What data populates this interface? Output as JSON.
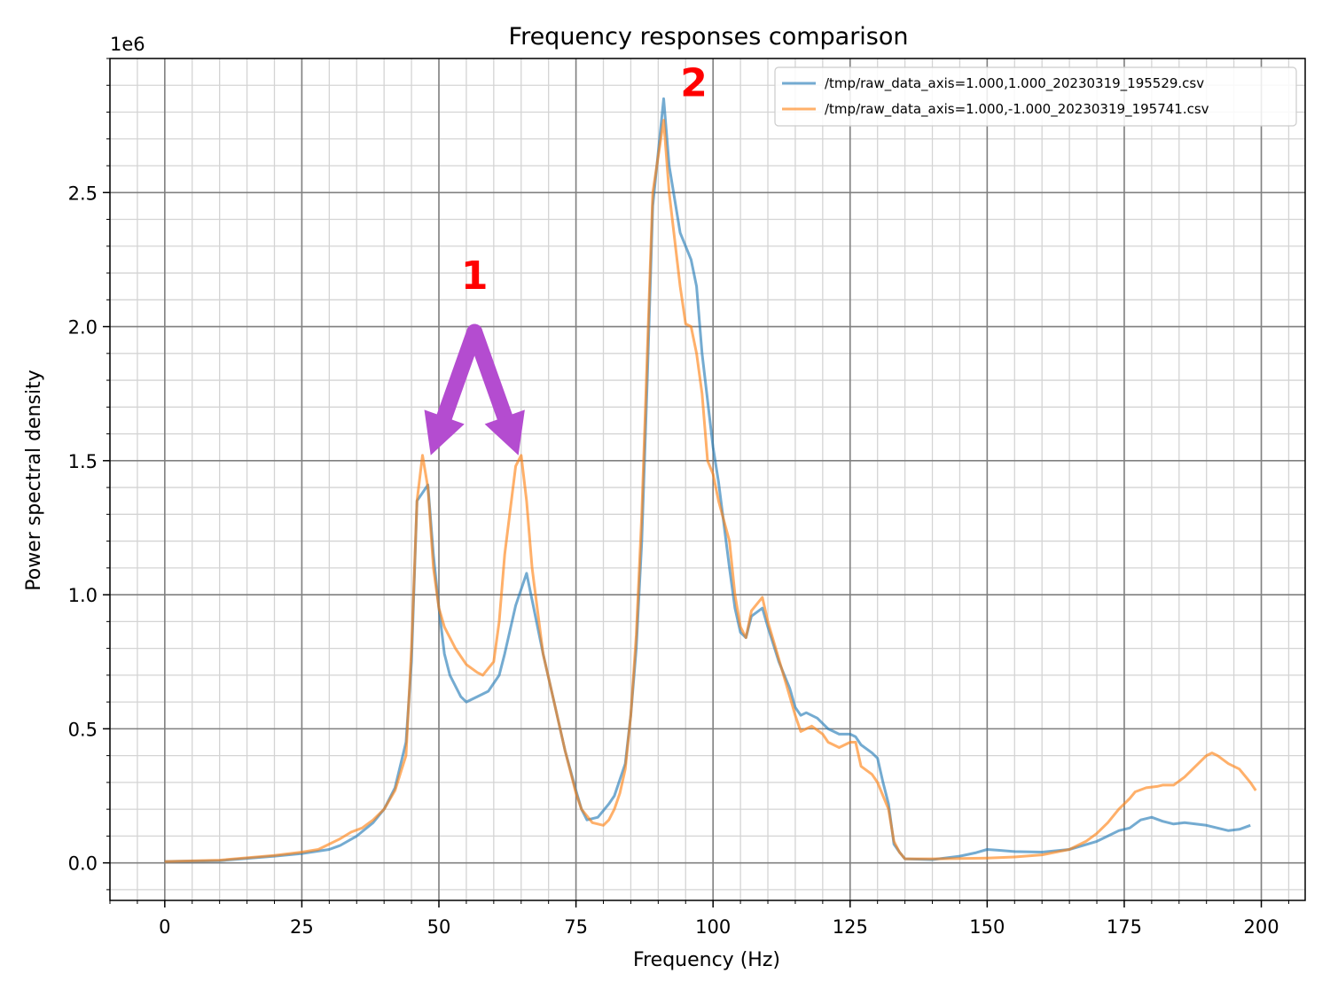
{
  "chart_data": {
    "type": "line",
    "title": "Frequency responses comparison",
    "xlabel": "Frequency (Hz)",
    "ylabel": "Power spectral density",
    "y_scale_label": "1e6",
    "xlim": [
      -10,
      208
    ],
    "ylim": [
      -0.14,
      3.0
    ],
    "x_ticks": [
      0,
      25,
      50,
      75,
      100,
      125,
      150,
      175,
      200
    ],
    "x_tick_labels": [
      "0",
      "25",
      "50",
      "75",
      "100",
      "125",
      "150",
      "175",
      "200"
    ],
    "y_ticks": [
      0.0,
      0.5,
      1.0,
      1.5,
      2.0,
      2.5
    ],
    "y_tick_labels": [
      "0.0",
      "0.5",
      "1.0",
      "1.5",
      "2.0",
      "2.5"
    ],
    "x_minor_step": 5,
    "y_minor_step": 0.1,
    "grid": true,
    "legend_position": "top-right",
    "series": [
      {
        "name": "/tmp/raw_data_axis=1.000,1.000_20230319_195529.csv",
        "color": "#1f77b4",
        "points": [
          [
            0,
            0.005
          ],
          [
            10,
            0.008
          ],
          [
            20,
            0.025
          ],
          [
            25,
            0.035
          ],
          [
            30,
            0.05
          ],
          [
            32,
            0.065
          ],
          [
            35,
            0.1
          ],
          [
            38,
            0.15
          ],
          [
            40,
            0.2
          ],
          [
            42,
            0.28
          ],
          [
            44,
            0.45
          ],
          [
            45,
            0.75
          ],
          [
            46,
            1.35
          ],
          [
            48,
            1.41
          ],
          [
            49,
            1.15
          ],
          [
            50,
            0.95
          ],
          [
            51,
            0.78
          ],
          [
            52,
            0.7
          ],
          [
            54,
            0.62
          ],
          [
            55,
            0.6
          ],
          [
            57,
            0.62
          ],
          [
            59,
            0.64
          ],
          [
            61,
            0.7
          ],
          [
            62,
            0.78
          ],
          [
            64,
            0.96
          ],
          [
            66,
            1.08
          ],
          [
            67,
            0.98
          ],
          [
            69,
            0.78
          ],
          [
            71,
            0.6
          ],
          [
            73,
            0.42
          ],
          [
            75,
            0.27
          ],
          [
            76,
            0.2
          ],
          [
            77,
            0.16
          ],
          [
            79,
            0.17
          ],
          [
            81,
            0.22
          ],
          [
            82,
            0.25
          ],
          [
            84,
            0.37
          ],
          [
            85,
            0.55
          ],
          [
            86,
            0.8
          ],
          [
            87,
            1.2
          ],
          [
            88,
            1.8
          ],
          [
            89,
            2.45
          ],
          [
            91,
            2.85
          ],
          [
            92,
            2.6
          ],
          [
            94,
            2.35
          ],
          [
            96,
            2.25
          ],
          [
            97,
            2.15
          ],
          [
            98,
            1.9
          ],
          [
            100,
            1.55
          ],
          [
            101,
            1.42
          ],
          [
            103,
            1.1
          ],
          [
            104,
            0.95
          ],
          [
            105,
            0.86
          ],
          [
            106,
            0.84
          ],
          [
            107,
            0.92
          ],
          [
            109,
            0.95
          ],
          [
            110,
            0.88
          ],
          [
            112,
            0.75
          ],
          [
            114,
            0.65
          ],
          [
            115,
            0.58
          ],
          [
            116,
            0.55
          ],
          [
            117,
            0.56
          ],
          [
            119,
            0.54
          ],
          [
            121,
            0.5
          ],
          [
            123,
            0.48
          ],
          [
            125,
            0.48
          ],
          [
            126,
            0.47
          ],
          [
            127,
            0.44
          ],
          [
            129,
            0.41
          ],
          [
            130,
            0.39
          ],
          [
            131,
            0.3
          ],
          [
            132,
            0.22
          ],
          [
            133,
            0.07
          ],
          [
            134,
            0.04
          ],
          [
            135,
            0.015
          ],
          [
            140,
            0.012
          ],
          [
            145,
            0.025
          ],
          [
            148,
            0.038
          ],
          [
            150,
            0.05
          ],
          [
            152,
            0.047
          ],
          [
            155,
            0.042
          ],
          [
            160,
            0.04
          ],
          [
            165,
            0.05
          ],
          [
            170,
            0.08
          ],
          [
            172,
            0.1
          ],
          [
            174,
            0.12
          ],
          [
            176,
            0.13
          ],
          [
            178,
            0.16
          ],
          [
            180,
            0.17
          ],
          [
            182,
            0.155
          ],
          [
            184,
            0.145
          ],
          [
            186,
            0.15
          ],
          [
            188,
            0.145
          ],
          [
            190,
            0.14
          ],
          [
            192,
            0.13
          ],
          [
            194,
            0.12
          ],
          [
            196,
            0.125
          ],
          [
            198,
            0.14
          ]
        ]
      },
      {
        "name": "/tmp/raw_data_axis=1.000,-1.000_20230319_195741.csv",
        "color": "#ff7f0e",
        "points": [
          [
            0,
            0.005
          ],
          [
            10,
            0.01
          ],
          [
            20,
            0.028
          ],
          [
            25,
            0.04
          ],
          [
            28,
            0.05
          ],
          [
            30,
            0.07
          ],
          [
            32,
            0.09
          ],
          [
            34,
            0.115
          ],
          [
            36,
            0.13
          ],
          [
            38,
            0.16
          ],
          [
            40,
            0.2
          ],
          [
            42,
            0.27
          ],
          [
            44,
            0.4
          ],
          [
            45,
            0.8
          ],
          [
            46,
            1.35
          ],
          [
            47,
            1.52
          ],
          [
            48,
            1.4
          ],
          [
            49,
            1.1
          ],
          [
            50,
            0.95
          ],
          [
            51,
            0.88
          ],
          [
            53,
            0.8
          ],
          [
            55,
            0.74
          ],
          [
            57,
            0.71
          ],
          [
            58,
            0.7
          ],
          [
            60,
            0.75
          ],
          [
            61,
            0.9
          ],
          [
            62,
            1.15
          ],
          [
            64,
            1.48
          ],
          [
            65,
            1.52
          ],
          [
            66,
            1.35
          ],
          [
            67,
            1.1
          ],
          [
            69,
            0.78
          ],
          [
            71,
            0.6
          ],
          [
            73,
            0.42
          ],
          [
            75,
            0.26
          ],
          [
            76,
            0.2
          ],
          [
            78,
            0.15
          ],
          [
            80,
            0.14
          ],
          [
            81,
            0.16
          ],
          [
            82,
            0.2
          ],
          [
            83,
            0.26
          ],
          [
            84,
            0.35
          ],
          [
            85,
            0.55
          ],
          [
            86,
            0.85
          ],
          [
            87,
            1.3
          ],
          [
            88,
            1.9
          ],
          [
            89,
            2.5
          ],
          [
            91,
            2.77
          ],
          [
            92,
            2.5
          ],
          [
            94,
            2.15
          ],
          [
            95,
            2.01
          ],
          [
            96,
            2.0
          ],
          [
            97,
            1.9
          ],
          [
            98,
            1.75
          ],
          [
            99,
            1.5
          ],
          [
            100,
            1.45
          ],
          [
            101,
            1.35
          ],
          [
            103,
            1.2
          ],
          [
            104,
            1.0
          ],
          [
            105,
            0.88
          ],
          [
            106,
            0.84
          ],
          [
            107,
            0.94
          ],
          [
            109,
            0.99
          ],
          [
            110,
            0.9
          ],
          [
            112,
            0.76
          ],
          [
            114,
            0.62
          ],
          [
            115,
            0.55
          ],
          [
            116,
            0.49
          ],
          [
            118,
            0.51
          ],
          [
            120,
            0.48
          ],
          [
            121,
            0.45
          ],
          [
            123,
            0.43
          ],
          [
            125,
            0.45
          ],
          [
            126,
            0.45
          ],
          [
            127,
            0.36
          ],
          [
            129,
            0.33
          ],
          [
            130,
            0.3
          ],
          [
            131,
            0.25
          ],
          [
            132,
            0.2
          ],
          [
            133,
            0.08
          ],
          [
            134,
            0.04
          ],
          [
            135,
            0.015
          ],
          [
            140,
            0.015
          ],
          [
            145,
            0.016
          ],
          [
            150,
            0.018
          ],
          [
            155,
            0.022
          ],
          [
            160,
            0.03
          ],
          [
            165,
            0.05
          ],
          [
            168,
            0.08
          ],
          [
            170,
            0.11
          ],
          [
            172,
            0.15
          ],
          [
            174,
            0.2
          ],
          [
            176,
            0.24
          ],
          [
            177,
            0.265
          ],
          [
            179,
            0.28
          ],
          [
            181,
            0.285
          ],
          [
            182,
            0.29
          ],
          [
            184,
            0.29
          ],
          [
            186,
            0.32
          ],
          [
            188,
            0.36
          ],
          [
            190,
            0.4
          ],
          [
            191,
            0.41
          ],
          [
            192,
            0.4
          ],
          [
            194,
            0.37
          ],
          [
            196,
            0.35
          ],
          [
            198,
            0.3
          ],
          [
            199,
            0.27
          ]
        ]
      }
    ],
    "annotations": [
      {
        "text": "1",
        "x": 56.5,
        "y": 2.14,
        "color": "#ff0000"
      },
      {
        "text": "2",
        "x": 96.5,
        "y": 2.86,
        "color": "#ff0000"
      }
    ],
    "arrows": [
      {
        "from": [
          56.5,
          1.98
        ],
        "to": [
          48.5,
          1.52
        ],
        "color": "#b44cd0"
      },
      {
        "from": [
          56.5,
          1.98
        ],
        "to": [
          64.5,
          1.52
        ],
        "color": "#b44cd0"
      }
    ]
  }
}
